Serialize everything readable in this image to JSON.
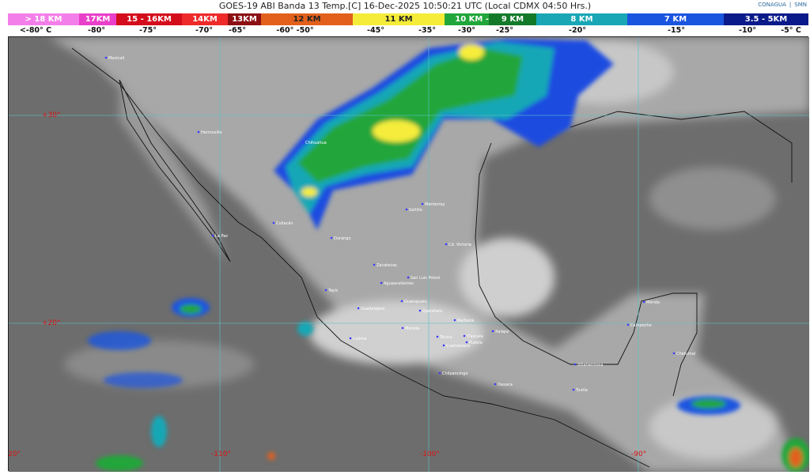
{
  "header": {
    "title": "GOES-19 ABI Banda 13 Temp.[C] 16-Dec-2025 10:50:21 UTC (Local CDMX  04:50 Hrs.)",
    "logos": [
      "CONAGUA",
      "SMN"
    ]
  },
  "legend": {
    "segments": [
      {
        "label": "> 18 KM",
        "color": "#f47ee9"
      },
      {
        "label": "17KM",
        "color": "#e93fc9"
      },
      {
        "label": "15 - 16KM",
        "color": "#d40d1c"
      },
      {
        "label": "14KM",
        "color": "#ee2a2a"
      },
      {
        "label": "13KM",
        "color": "#8c0f14"
      },
      {
        "label": "12 KM",
        "color": "#e2601c"
      },
      {
        "label": "11 KM",
        "color": "#f5ec3a"
      },
      {
        "label": "10 KM -",
        "color": "#21a63a"
      },
      {
        "label": "9 KM",
        "color": "#137a2a"
      },
      {
        "label": "8 KM",
        "color": "#19a7b6"
      },
      {
        "label": "7 KM",
        "color": "#1a55e0"
      },
      {
        "label": "3.5 - 5KM",
        "color": "#0b1a8a"
      }
    ],
    "temps": [
      "<-80° C",
      "-80°",
      "-75°",
      "-70°",
      "-65°",
      "-60°  -50°",
      "-45°",
      "-35°",
      "-30°",
      "-25°",
      "-20°",
      "-15°",
      "-10°",
      "-5°  C"
    ]
  },
  "map": {
    "lat_labels": [
      "+30°",
      "+20°"
    ],
    "lon_labels": [
      "-120°",
      "-110°",
      "-100°",
      "-90°"
    ],
    "cities": [
      "Mexicali",
      "Hermosillo",
      "Chihuahua",
      "Monterrey",
      "Saltillo",
      "Culiacán",
      "Durango",
      "La Paz",
      "Cd. Victoria",
      "Zacatecas",
      "San Luis Potosí",
      "Aguascalientes",
      "Tepic",
      "Guadalajara",
      "Guanajuato",
      "Querétaro",
      "Morelia",
      "Colima",
      "Pachuca",
      "Toluca",
      "Tlaxcala",
      "Puebla",
      "Cuernavaca",
      "Xalapa",
      "Chilpancingo",
      "Oaxaca",
      "Villahermosa",
      "Tuxtla",
      "Mérida",
      "Campeche",
      "Chetumal"
    ]
  }
}
